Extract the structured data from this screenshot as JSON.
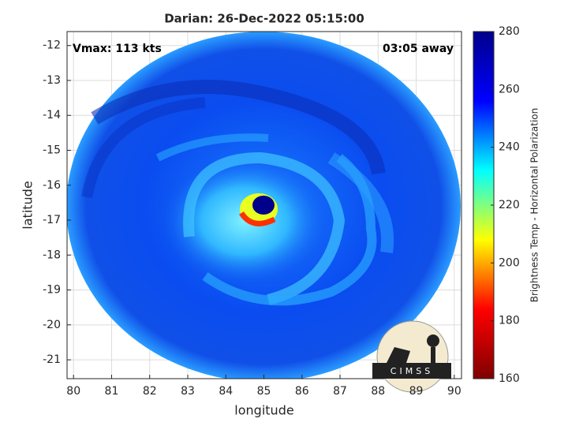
{
  "chart_data": {
    "type": "heatmap",
    "title": "Darian: 26-Dec-2022 05:15:00",
    "xlabel": "longitude",
    "ylabel": "latitude",
    "annotations": [
      "Vmax: 113 kts",
      "03:05 away"
    ],
    "logo": "CIMSS",
    "xlim": [
      79.83,
      90.19
    ],
    "xticks": [
      80,
      81,
      82,
      83,
      84,
      85,
      86,
      87,
      88,
      89,
      90
    ],
    "ylim": [
      -21.54,
      -11.6
    ],
    "yticks": [
      -12,
      -13,
      -14,
      -15,
      -16,
      -17,
      -18,
      -19,
      -20,
      -21
    ],
    "grid": true,
    "colorbar": {
      "label": "Brightness Temp - Horizontal Polarization",
      "lim": [
        160,
        280
      ],
      "ticks": [
        160,
        180,
        200,
        220,
        240,
        260,
        280
      ],
      "colors": [
        "#800000",
        "#ff0000",
        "#ffff00",
        "#00ffff",
        "#0000ff",
        "#00008b"
      ]
    }
  }
}
